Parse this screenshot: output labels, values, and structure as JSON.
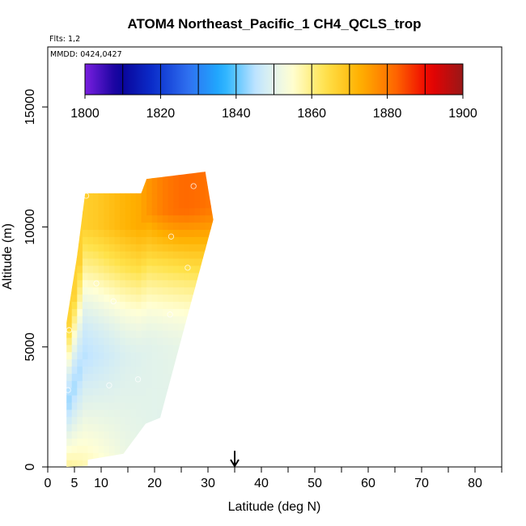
{
  "chart_data": {
    "type": "heatmap",
    "title": "ATOM4 Northeast_Pacific_1 CH4_QCLS_trop",
    "flights_label": "Flts: 1,2",
    "date_label": "MMDD: 0424,0427",
    "xlabel": "Latitude (deg N)",
    "ylabel": "Altitude (m)",
    "xlim": [
      0,
      85
    ],
    "ylim": [
      0,
      17500
    ],
    "x_ticks": [
      0,
      5,
      10,
      20,
      30,
      40,
      50,
      60,
      70,
      80
    ],
    "x_tick_labels": [
      "0",
      "5",
      "10",
      "20",
      "30",
      "40",
      "50",
      "60",
      "70",
      "80"
    ],
    "x_minor_ticks": [
      15,
      25,
      35,
      45,
      55,
      65,
      75,
      85
    ],
    "y_ticks": [
      0,
      5000,
      10000,
      15000
    ],
    "y_tick_labels": [
      "0",
      "5000",
      "10000",
      "15000"
    ],
    "colorbar": {
      "min": 1800,
      "max": 1900,
      "tick_values": [
        1800,
        1820,
        1840,
        1860,
        1880,
        1900
      ],
      "tick_labels": [
        "1800",
        "1820",
        "1840",
        "1860",
        "1880",
        "1900"
      ],
      "colors": [
        "#7a1fe0",
        "#0a0096",
        "#0b2fcc",
        "#2f6ff0",
        "#1eb0ff",
        "#c4e6ff",
        "#ffffd6",
        "#ffe24a",
        "#ffb000",
        "#ff6a00",
        "#ee0000",
        "#991818"
      ]
    },
    "field": {
      "lat_range": [
        3.5,
        31
      ],
      "alt_range": [
        0,
        12300
      ],
      "top_edge": [
        [
          3.5,
          6000
        ],
        [
          5.5,
          8800
        ],
        [
          7,
          11400
        ],
        [
          17.5,
          11400
        ],
        [
          18.5,
          12000
        ],
        [
          29.5,
          12300
        ]
      ],
      "low_layer_values": [
        1859,
        1856,
        1852,
        1850,
        1849,
        1848
      ],
      "mid_layer_values": [
        1843,
        1846,
        1849,
        1850,
        1851,
        1852
      ],
      "upper_layer_values": [
        1866,
        1868,
        1872,
        1875,
        1878,
        1880
      ]
    },
    "arrow_latitude": 35,
    "sample_points": [
      {
        "lat": 7.2,
        "alt": 11300
      },
      {
        "lat": 27.3,
        "alt": 11700
      },
      {
        "lat": 23.1,
        "alt": 9600
      },
      {
        "lat": 30.7,
        "alt": 9500
      },
      {
        "lat": 26.2,
        "alt": 8300
      },
      {
        "lat": 9.1,
        "alt": 7650
      },
      {
        "lat": 12.3,
        "alt": 6900
      },
      {
        "lat": 22.9,
        "alt": 6350
      },
      {
        "lat": 4.0,
        "alt": 5700
      },
      {
        "lat": 16.9,
        "alt": 3650
      },
      {
        "lat": 11.5,
        "alt": 3400
      },
      {
        "lat": 3.8,
        "alt": 3200
      }
    ]
  }
}
